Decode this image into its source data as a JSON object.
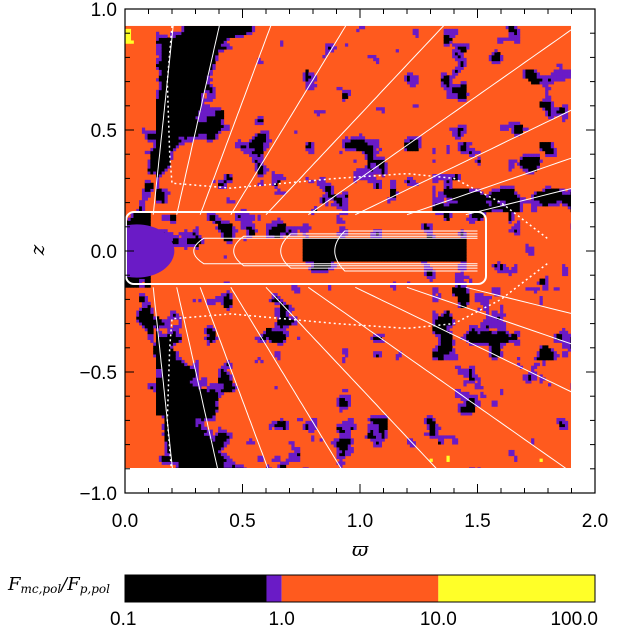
{
  "chart_data": {
    "type": "heatmap",
    "title": "",
    "xlabel": "ϖ",
    "ylabel": "z",
    "xlim": [
      0.0,
      2.0
    ],
    "ylim": [
      -1.0,
      1.0
    ],
    "x_ticks": [
      "0.0",
      "0.5",
      "1.0",
      "1.5",
      "2.0"
    ],
    "y_ticks": [
      "1.0",
      "0.5",
      "0.0",
      "−0.5",
      "−1.0"
    ],
    "data_extent": {
      "x": [
        0.0,
        1.9
      ],
      "z": [
        -0.93,
        0.93
      ]
    },
    "disk_box": {
      "x": [
        0.0,
        1.5
      ],
      "z": [
        -0.15,
        0.15
      ]
    },
    "colorbar": {
      "title": "Fmc,pol/Fp,pol",
      "scale": "log",
      "tick_labels": [
        "0.1",
        "1.0",
        "10.0",
        "100.0"
      ],
      "bins": [
        {
          "from": 0.1,
          "to": 0.8,
          "color": "#000000"
        },
        {
          "from": 0.8,
          "to": 1.0,
          "color": "#6a1bc6"
        },
        {
          "from": 1.0,
          "to": 10.0,
          "color": "#ff5a1e"
        },
        {
          "from": 10.0,
          "to": 100.0,
          "color": "#ffff28"
        }
      ]
    },
    "field_line_footpoints": [
      0.12,
      0.22,
      0.32,
      0.45,
      0.6,
      0.78,
      0.98,
      1.2,
      1.45
    ]
  }
}
